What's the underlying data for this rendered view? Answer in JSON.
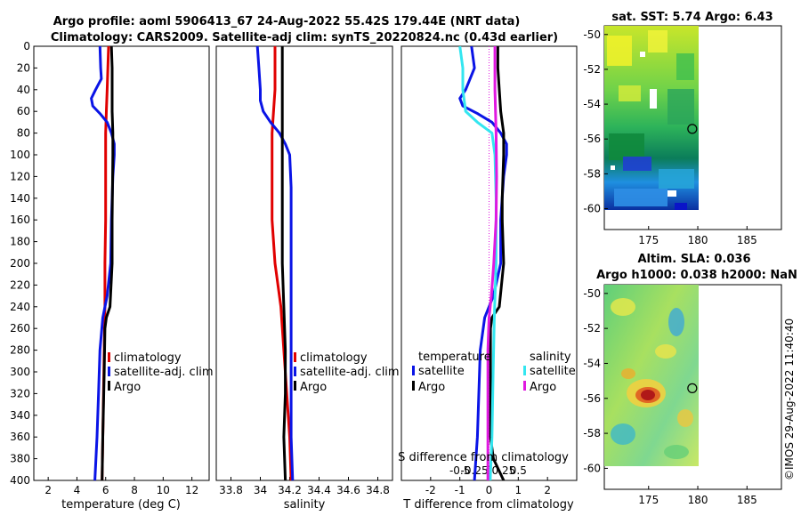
{
  "header": {
    "title_line1": "Argo profile: aoml 5906413_67 24-Aug-2022 55.42S 179.44E (NRT data)",
    "title_line2": "Climatology: CARS2009. Satellite-adj clim: synTS_20220824.nc (0.43d earlier)"
  },
  "colors": {
    "climatology": "#e00000",
    "satellite": "#0a14e6",
    "argo": "#000000",
    "sat_temp": "#0a14e6",
    "sal_sat": "#33e6f0",
    "sal_argo": "#e019e0"
  },
  "chart_data": [
    {
      "id": "temperature",
      "type": "line",
      "xlabel": "temperature (deg C)",
      "ylabel": "",
      "xlim": [
        1,
        13.2
      ],
      "ylim": [
        400,
        0
      ],
      "x_ticks": [
        "2",
        "4",
        "6",
        "8",
        "10",
        "12"
      ],
      "x_tick_values": [
        2,
        4,
        6,
        8,
        10,
        12
      ],
      "y_ticks": [
        "0",
        "20",
        "40",
        "60",
        "80",
        "100",
        "120",
        "140",
        "160",
        "180",
        "200",
        "220",
        "240",
        "260",
        "280",
        "300",
        "320",
        "340",
        "360",
        "380",
        "400"
      ],
      "y_tick_values": [
        0,
        20,
        40,
        60,
        80,
        100,
        120,
        140,
        160,
        180,
        200,
        220,
        240,
        260,
        280,
        300,
        320,
        340,
        360,
        380,
        400
      ],
      "legend": [
        "climatology",
        "satellite-adj. clim",
        "Argo"
      ],
      "series": [
        {
          "name": "climatology",
          "color_key": "climatology",
          "depth": [
            0,
            20,
            40,
            60,
            80,
            100,
            120,
            160,
            200,
            240,
            280,
            320,
            360,
            400
          ],
          "values": [
            6.2,
            6.15,
            6.1,
            6.05,
            6.0,
            6.0,
            6.0,
            6.0,
            5.95,
            5.95,
            5.9,
            5.85,
            5.8,
            5.75
          ]
        },
        {
          "name": "satellite-adj. clim",
          "color_key": "satellite",
          "depth": [
            0,
            20,
            30,
            40,
            48,
            55,
            62,
            70,
            80,
            90,
            100,
            120,
            160,
            200,
            230,
            250,
            280,
            320,
            360,
            400
          ],
          "values": [
            5.6,
            5.65,
            5.7,
            5.3,
            5.0,
            5.1,
            5.6,
            6.1,
            6.4,
            6.6,
            6.6,
            6.5,
            6.4,
            6.35,
            6.1,
            5.8,
            5.6,
            5.5,
            5.4,
            5.25
          ]
        },
        {
          "name": "Argo",
          "color_key": "argo",
          "depth": [
            0,
            20,
            60,
            80,
            100,
            160,
            200,
            240,
            250,
            260,
            300,
            360,
            400
          ],
          "values": [
            6.4,
            6.45,
            6.45,
            6.5,
            6.5,
            6.45,
            6.45,
            6.3,
            6.05,
            5.95,
            5.9,
            5.8,
            5.75
          ]
        }
      ]
    },
    {
      "id": "salinity",
      "type": "line",
      "xlabel": "salinity",
      "ylabel": "",
      "xlim": [
        33.7,
        34.9
      ],
      "ylim": [
        400,
        0
      ],
      "x_ticks": [
        "33.8",
        "34",
        "34.2",
        "34.4",
        "34.6",
        "34.8"
      ],
      "x_tick_values": [
        33.8,
        34.0,
        34.2,
        34.4,
        34.6,
        34.8
      ],
      "legend": [
        "climatology",
        "satellite-adj. clim",
        "Argo"
      ],
      "series": [
        {
          "name": "climatology",
          "color_key": "climatology",
          "depth": [
            0,
            40,
            80,
            120,
            160,
            200,
            240,
            280,
            320,
            360,
            400
          ],
          "values": [
            34.1,
            34.1,
            34.08,
            34.08,
            34.08,
            34.1,
            34.14,
            34.16,
            34.18,
            34.2,
            34.21
          ]
        },
        {
          "name": "satellite-adj. clim",
          "color_key": "satellite",
          "depth": [
            0,
            20,
            40,
            50,
            60,
            70,
            80,
            90,
            100,
            130,
            160,
            200,
            240,
            280,
            320,
            360,
            400
          ],
          "values": [
            33.98,
            33.99,
            34.0,
            34.0,
            34.02,
            34.07,
            34.13,
            34.17,
            34.2,
            34.21,
            34.21,
            34.21,
            34.21,
            34.21,
            34.21,
            34.21,
            34.22
          ]
        },
        {
          "name": "Argo",
          "color_key": "argo",
          "depth": [
            0,
            40,
            80,
            120,
            160,
            200,
            240,
            280,
            320,
            360,
            400
          ],
          "values": [
            34.15,
            34.15,
            34.15,
            34.15,
            34.15,
            34.15,
            34.16,
            34.17,
            34.17,
            34.16,
            34.17
          ]
        }
      ]
    },
    {
      "id": "difference",
      "type": "line",
      "xlabel": "T difference from climatology",
      "top_label": "S difference from climatology",
      "xlim": [
        -3,
        3
      ],
      "ylim": [
        400,
        0
      ],
      "x_ticks": [
        "-2",
        "-1",
        "0",
        "1",
        "2"
      ],
      "x_tick_values": [
        -2,
        -1,
        0,
        1,
        2
      ],
      "s_ticks": [
        "-0.5",
        "-0.25",
        "0",
        "0.25",
        "0.5"
      ],
      "s_tick_values": [
        -0.5,
        -0.25,
        0,
        0.25,
        0.5
      ],
      "legend_temp_title": "temperature",
      "legend_sal_title": "salinity",
      "legend_temp": [
        "satellite",
        "Argo"
      ],
      "legend_sal": [
        "satellite",
        "Argo"
      ],
      "series": [
        {
          "name": "T satellite",
          "color_key": "sat_temp",
          "depth": [
            0,
            20,
            40,
            48,
            55,
            62,
            70,
            80,
            90,
            100,
            120,
            160,
            200,
            230,
            250,
            280,
            320,
            360,
            400
          ],
          "values": [
            -0.6,
            -0.5,
            -0.8,
            -1.0,
            -0.9,
            -0.4,
            0.1,
            0.4,
            0.6,
            0.6,
            0.5,
            0.4,
            0.4,
            0.15,
            -0.15,
            -0.3,
            -0.35,
            -0.4,
            -0.5
          ]
        },
        {
          "name": "T Argo",
          "color_key": "argo",
          "depth": [
            0,
            20,
            60,
            80,
            100,
            140,
            160,
            200,
            240,
            250,
            260,
            300,
            360,
            380,
            400
          ],
          "values": [
            0.3,
            0.3,
            0.4,
            0.5,
            0.5,
            0.45,
            0.45,
            0.5,
            0.35,
            0.1,
            0.05,
            0.05,
            0.05,
            0.15,
            0.5
          ]
        },
        {
          "name": "S satellite",
          "color_key": "sal_sat",
          "depth": [
            0,
            20,
            40,
            60,
            70,
            80,
            100,
            140,
            200,
            250,
            300,
            360,
            400
          ],
          "values": [
            -0.5,
            -0.45,
            -0.45,
            -0.4,
            -0.2,
            0.05,
            0.1,
            0.12,
            0.12,
            0.09,
            0.07,
            0.05,
            0.02
          ]
        },
        {
          "name": "S Argo",
          "color_key": "sal_argo",
          "depth": [
            0,
            40,
            80,
            120,
            160,
            200,
            230,
            250,
            280,
            320,
            360,
            400
          ],
          "values": [
            0.1,
            0.1,
            0.12,
            0.13,
            0.12,
            0.08,
            0.04,
            0.0,
            -0.02,
            -0.02,
            -0.02,
            -0.02
          ]
        }
      ]
    },
    {
      "id": "sst_map",
      "type": "heatmap",
      "title": "sat. SST: 5.74  Argo: 6.43",
      "x_ticks": [
        "175",
        "180",
        "185"
      ],
      "x_tick_values": [
        175,
        180,
        185
      ],
      "y_ticks": [
        "-50",
        "-52",
        "-54",
        "-56",
        "-58",
        "-60"
      ],
      "y_tick_values": [
        -50,
        -52,
        -54,
        -56,
        -58,
        -60
      ],
      "xlim": [
        170.5,
        188.5
      ],
      "ylim": [
        -61.2,
        -49.5
      ],
      "marker": {
        "lon": 179.44,
        "lat": -55.42
      }
    },
    {
      "id": "sla_map",
      "type": "heatmap",
      "title_line1": "Altim. SLA: 0.036",
      "title_line2": "Argo h1000: 0.038 h2000: NaN",
      "x_ticks": [
        "175",
        "180",
        "185"
      ],
      "x_tick_values": [
        175,
        180,
        185
      ],
      "y_ticks": [
        "-50",
        "-52",
        "-54",
        "-56",
        "-58",
        "-60"
      ],
      "y_tick_values": [
        -50,
        -52,
        -54,
        -56,
        -58,
        -60
      ],
      "xlim": [
        170.5,
        188.5
      ],
      "ylim": [
        -61.2,
        -49.5
      ],
      "marker": {
        "lon": 179.44,
        "lat": -55.42
      }
    }
  ],
  "watermark": "©IMOS 29-Aug-2022 11:40:40"
}
